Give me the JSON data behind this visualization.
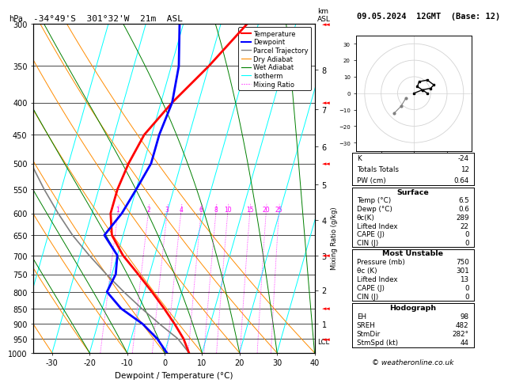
{
  "title_left": "-34°49'S  301°32'W  21m  ASL",
  "title_right": "09.05.2024  12GMT  (Base: 12)",
  "xlabel": "Dewpoint / Temperature (°C)",
  "pressure_levels": [
    300,
    350,
    400,
    450,
    500,
    550,
    600,
    650,
    700,
    750,
    800,
    850,
    900,
    950,
    1000
  ],
  "xlim": [
    -35,
    40
  ],
  "temp_profile_p": [
    1000,
    950,
    900,
    850,
    800,
    750,
    700,
    650,
    600,
    550,
    500,
    450,
    400,
    350,
    300
  ],
  "temp_profile_t": [
    6.5,
    4.0,
    0.5,
    -3.5,
    -8.0,
    -13.0,
    -18.5,
    -23.0,
    -25.0,
    -25.0,
    -24.0,
    -22.0,
    -17.0,
    -10.0,
    -3.0
  ],
  "dewp_profile_p": [
    1000,
    950,
    900,
    850,
    800,
    750,
    700,
    650,
    600,
    550,
    500,
    450,
    400,
    350,
    300
  ],
  "dewp_profile_t": [
    0.6,
    -3.0,
    -8.0,
    -15.0,
    -20.0,
    -19.0,
    -20.0,
    -25.0,
    -22.0,
    -20.0,
    -18.0,
    -18.0,
    -17.0,
    -18.0,
    -21.0
  ],
  "parcel_profile_p": [
    1000,
    950,
    900,
    850,
    800,
    750,
    700,
    650,
    600,
    550,
    500,
    450,
    400,
    350,
    300
  ],
  "parcel_profile_t": [
    6.5,
    2.5,
    -3.5,
    -9.5,
    -15.5,
    -21.5,
    -27.5,
    -33.5,
    -39.0,
    -44.5,
    -50.0,
    -55.5,
    -60.0,
    -64.5,
    -68.0
  ],
  "skew_factor": 25.0,
  "isotherm_temps": [
    -40,
    -30,
    -20,
    -10,
    0,
    10,
    20,
    30,
    40
  ],
  "dry_adiabat_surface": [
    -40,
    -30,
    -20,
    -10,
    0,
    10,
    20,
    30,
    40
  ],
  "wet_adiabat_surface": [
    -20,
    -10,
    0,
    10,
    20,
    30,
    40
  ],
  "mixing_ratio_vals": [
    1,
    2,
    3,
    4,
    6,
    8,
    10,
    15,
    20,
    25
  ],
  "km_ticks": [
    1,
    2,
    3,
    4,
    5,
    6,
    7,
    8
  ],
  "km_pressures": [
    900,
    795,
    700,
    615,
    540,
    470,
    410,
    355
  ],
  "lcl_pressure": 960,
  "wind_barbs": [
    {
      "p": 300,
      "u": -5,
      "v": -8
    },
    {
      "p": 400,
      "u": -6,
      "v": -6
    },
    {
      "p": 500,
      "u": -5,
      "v": -5
    },
    {
      "p": 700,
      "u": -4,
      "v": -3
    },
    {
      "p": 850,
      "u": -3,
      "v": -2
    },
    {
      "p": 950,
      "u": -2,
      "v": -2
    }
  ],
  "hodo_u": [
    0,
    5,
    10,
    12,
    8,
    3,
    2,
    5,
    8
  ],
  "hodo_v": [
    0,
    2,
    3,
    5,
    8,
    7,
    4,
    2,
    0
  ],
  "hodo_u_gray": [
    -5,
    -8,
    -12
  ],
  "hodo_v_gray": [
    -3,
    -8,
    -12
  ],
  "info_box": {
    "K": -24,
    "Totals_Totals": 12,
    "PW_cm": "0.64",
    "Surface_Temp": "6.5",
    "Surface_Dewp": "0.6",
    "Surface_theta_e": 289,
    "Lifted_Index": 22,
    "CAPE": 0,
    "CIN": 0,
    "MU_Pressure": 750,
    "MU_theta_e": 301,
    "MU_Lifted_Index": 13,
    "MU_CAPE": 0,
    "MU_CIN": 0,
    "EH": 98,
    "SREH": 482,
    "StmDir": "282°",
    "StmSpd": 44
  },
  "footer": "© weatheronline.co.uk",
  "bg_color": "#ffffff"
}
